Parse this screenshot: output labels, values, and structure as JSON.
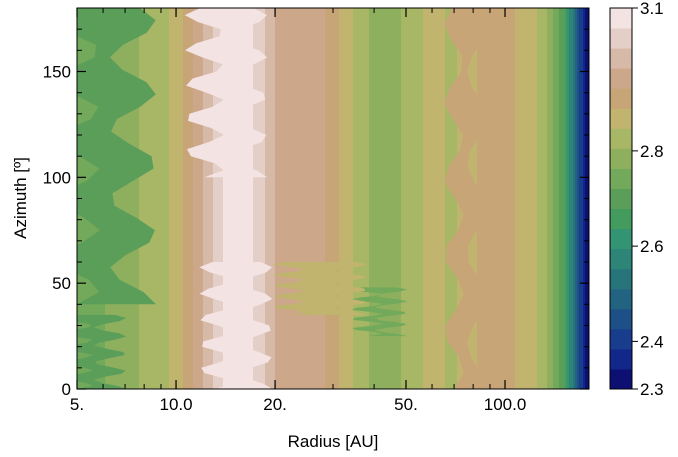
{
  "chart_data": {
    "type": "heatmap",
    "subtype": "filled-contour",
    "title": "",
    "xlabel": "Radius [AU]",
    "ylabel": "Azimuth [º]",
    "xscale": "log",
    "xlim": [
      5,
      180
    ],
    "ylim": [
      0,
      180
    ],
    "x_ticks": [
      {
        "value": 5,
        "label": "5."
      },
      {
        "value": 10,
        "label": "10.0"
      },
      {
        "value": 20,
        "label": "20."
      },
      {
        "value": 50,
        "label": "50."
      },
      {
        "value": 100,
        "label": "100.0"
      }
    ],
    "y_ticks": [
      {
        "value": 0,
        "label": "0"
      },
      {
        "value": 50,
        "label": "50"
      },
      {
        "value": 100,
        "label": "100"
      },
      {
        "value": 150,
        "label": "150"
      }
    ],
    "colorbar": {
      "range": [
        2.3,
        3.1
      ],
      "ticks": [
        {
          "value": 2.3,
          "label": "2.3"
        },
        {
          "value": 2.4,
          "label": "2.4"
        },
        {
          "value": 2.6,
          "label": "2.6"
        },
        {
          "value": 2.8,
          "label": "2.8"
        },
        {
          "value": 3.1,
          "label": "3.1"
        }
      ],
      "colors": [
        "#0d0f72",
        "#11288a",
        "#173d8c",
        "#1d5086",
        "#226381",
        "#27757b",
        "#2c8577",
        "#329472",
        "#439b5d",
        "#5b9e5a",
        "#73a95b",
        "#8eb05e",
        "#a8b766",
        "#c0b46f",
        "#c7a577",
        "#cca78a",
        "#d6b9a6",
        "#e4cec8",
        "#f3e3e3"
      ]
    },
    "radial_profile": {
      "radius_au": [
        5,
        6,
        7,
        8,
        9,
        10,
        11,
        12,
        13,
        14,
        16,
        18,
        20,
        23,
        26,
        30,
        35,
        40,
        45,
        50,
        60,
        70,
        80,
        90,
        100,
        120,
        135,
        150,
        160,
        170,
        180
      ],
      "value": [
        2.73,
        2.76,
        2.79,
        2.81,
        2.83,
        2.86,
        2.92,
        2.97,
        3.02,
        3.06,
        3.08,
        3.04,
        2.97,
        2.96,
        2.96,
        2.91,
        2.84,
        2.79,
        2.78,
        2.82,
        2.86,
        2.84,
        2.88,
        2.92,
        2.9,
        2.87,
        2.8,
        2.7,
        2.55,
        2.4,
        2.3
      ]
    },
    "grid": false,
    "legend": "colorbar-right"
  }
}
